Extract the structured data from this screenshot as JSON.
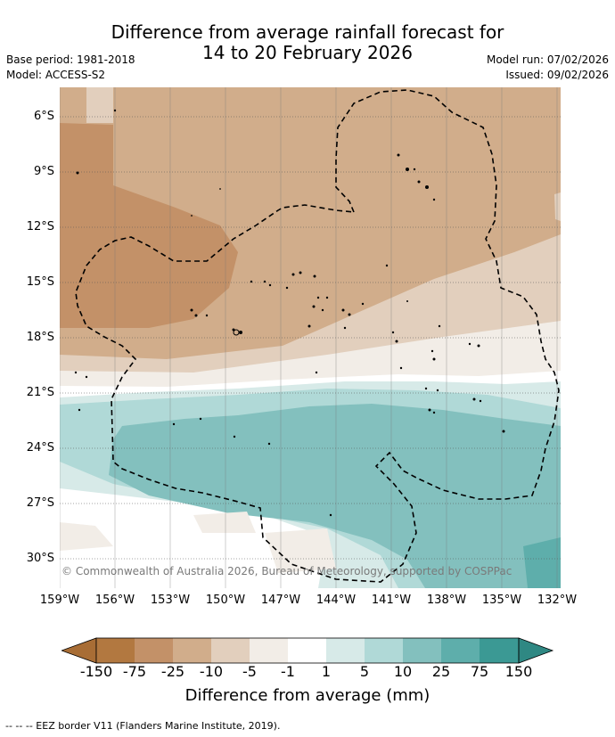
{
  "title_line1": "Difference from average rainfall forecast for",
  "title_line2": "14 to 20 February 2026",
  "base_period": "Base period: 1981-2018",
  "model": "Model: ACCESS-S2",
  "model_run": "Model run: 07/02/2026",
  "issued": "Issued: 09/02/2026",
  "copyright": "© Commonwealth of Australia 2026, Bureau of Meteorology, supported by COSPPac",
  "lat_labels": [
    "6°S",
    "9°S",
    "12°S",
    "15°S",
    "18°S",
    "21°S",
    "24°S",
    "27°S",
    "30°S"
  ],
  "lon_labels": [
    "159°W",
    "156°W",
    "153°W",
    "150°W",
    "147°W",
    "144°W",
    "141°W",
    "138°W",
    "135°W",
    "132°W"
  ],
  "colorbar": {
    "label": "Difference from average (mm)",
    "ticks": [
      "-150",
      "-75",
      "-25",
      "-10",
      "-5",
      "-1",
      "1",
      "5",
      "10",
      "25",
      "75",
      "150"
    ],
    "colors": [
      "#a86d35",
      "#b27840",
      "#c39168",
      "#d1ad8b",
      "#e2cfbd",
      "#f2ede7",
      "#ffffff",
      "#d7eae8",
      "#b0d9d7",
      "#83c0be",
      "#5eaeab",
      "#3b9994",
      "#2f8883"
    ]
  },
  "footnote": "-- -- -- EEZ border V11 (Flanders Marine Institute, 2019)."
}
